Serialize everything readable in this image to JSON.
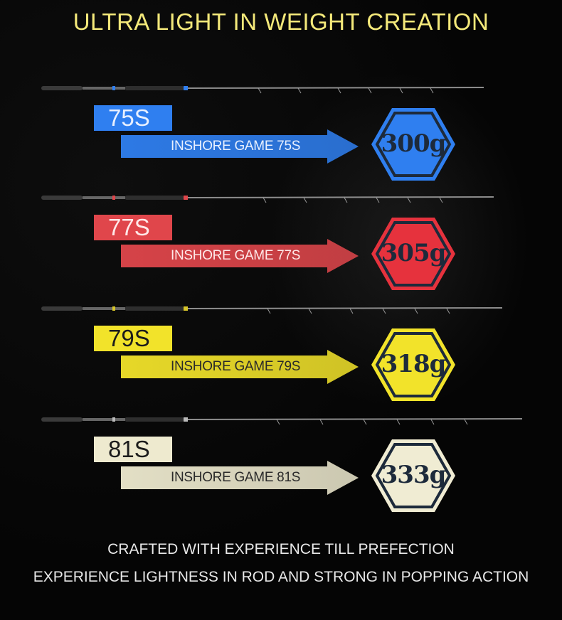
{
  "headline": "ULTRA LIGHT IN WEIGHT CREATION",
  "models": [
    {
      "tab": "75S",
      "name": "INSHORE GAME 75S",
      "weight": "300g",
      "color": "#2f7ff0",
      "hex_fill": "#2f7ff0",
      "tab_text": "#e8f0ff",
      "label_text": "#e8f0ff",
      "accent": "#2f7ff0"
    },
    {
      "tab": "77S",
      "name": "INSHORE GAME  77S",
      "weight": "305g",
      "color": "#e0464b",
      "hex_fill": "#e6323d",
      "tab_text": "#ffe9e9",
      "label_text": "#ffe9e9",
      "accent": "#e0464b"
    },
    {
      "tab": "79S",
      "name": "INSHORE GAME  79S",
      "weight": "318g",
      "color": "#f2e32a",
      "hex_fill": "#f2e32a",
      "tab_text": "#1c1c1c",
      "label_text": "#2a2a2a",
      "accent": "#d8c62a"
    },
    {
      "tab": "81S",
      "name": "INSHORE GAME  81S",
      "weight": "333g",
      "color": "#eeeacf",
      "hex_fill": "#f0ecd3",
      "tab_text": "#1c1c1c",
      "label_text": "#2a2a2a",
      "accent": "#bbbbbb"
    }
  ],
  "footer": {
    "line1": "CRAFTED WITH EXPERIENCE TILL PREFECTION",
    "line2": "EXPERIENCE LIGHTNESS IN ROD AND STRONG IN POPPING ACTION"
  }
}
